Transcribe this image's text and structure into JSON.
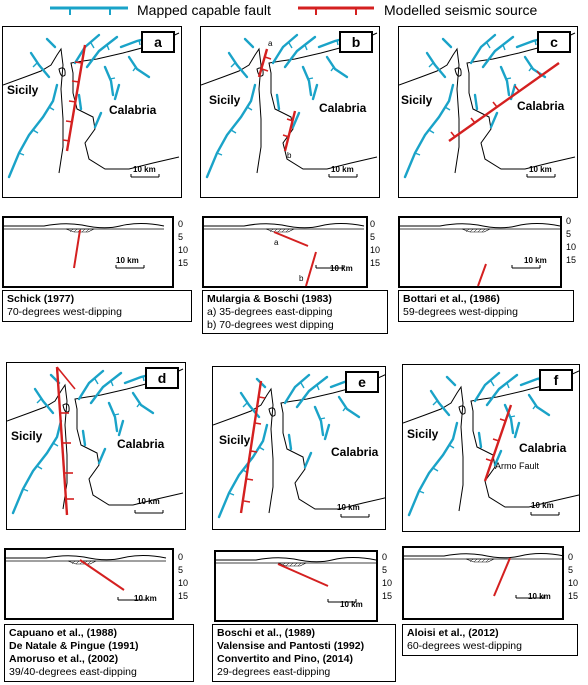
{
  "legend": {
    "mapped_fault_label": "Mapped capable fault",
    "modelled_source_label": "Modelled seismic source",
    "mapped_fault_color": "#1aa3c8",
    "modelled_source_color": "#d42020"
  },
  "common": {
    "sicily_label": "Sicily",
    "calabria_label": "Calabria",
    "map_scale_label": "10 km",
    "section_scale_label": "10 km",
    "depth_ticks": [
      "0",
      "5",
      "10",
      "15"
    ]
  },
  "panels": [
    {
      "letter": "a",
      "authors": [
        "Schick (1977)"
      ],
      "description": [
        "70-degrees west-dipping"
      ]
    },
    {
      "letter": "b",
      "authors": [
        "Mulargia & Boschi (1983)"
      ],
      "description": [
        "a) 35-degrees east-dipping",
        "b) 70-degrees west dipping"
      ],
      "marker_a": "a",
      "marker_b": "b"
    },
    {
      "letter": "c",
      "authors": [
        "Bottari et al., (1986)"
      ],
      "description": [
        "59-degrees west-dipping"
      ]
    },
    {
      "letter": "d",
      "authors": [
        "Capuano et al., (1988)",
        "De Natale & Pingue (1991)",
        "Amoruso et al., (2002)"
      ],
      "description": [
        "39/40-degrees east-dipping"
      ]
    },
    {
      "letter": "e",
      "authors": [
        "Boschi et al., (1989)",
        "Valensise and Pantosti (1992)",
        "Convertito and Pino, (2014)"
      ],
      "description": [
        "29-degrees east-dipping"
      ]
    },
    {
      "letter": "f",
      "authors": [
        "Aloisi et al., (2012)"
      ],
      "description": [
        "60-degrees west-dipping"
      ],
      "fault_name": "Armo Fault"
    }
  ]
}
